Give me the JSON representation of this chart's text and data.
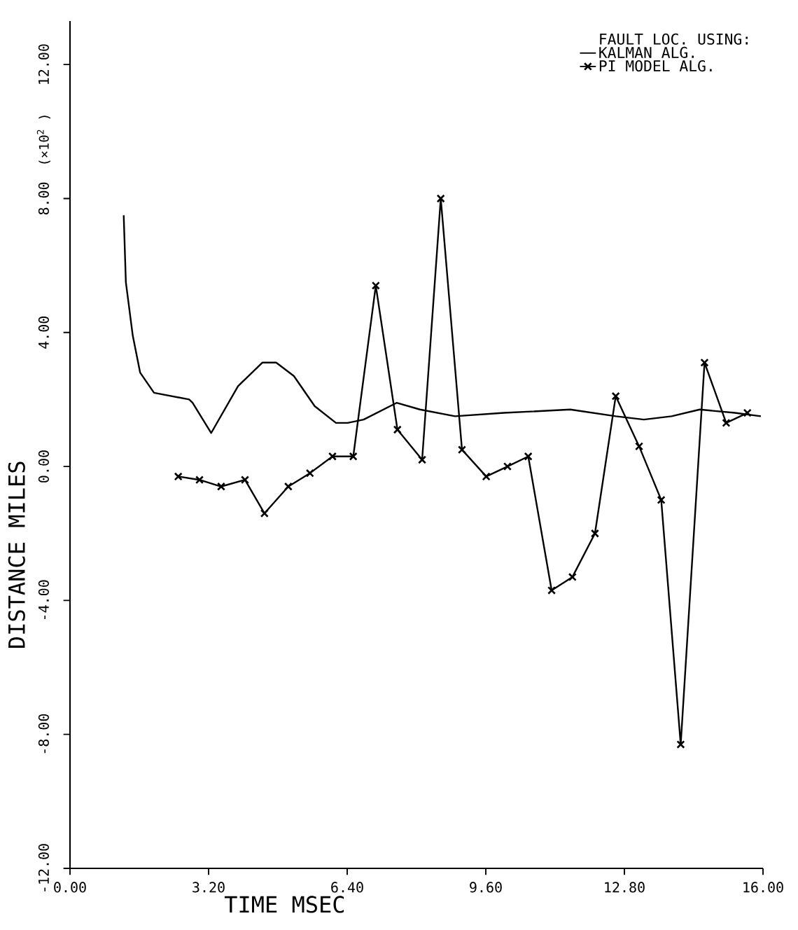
{
  "chart_data": {
    "type": "line",
    "xlabel": "TIME MSEC",
    "ylabel": "DISTANCE MILES",
    "legend_title": "FAULT LOC. USING:",
    "annotations": [
      "(×10$^{2}$ )"
    ],
    "xlim": [
      0,
      16
    ],
    "ylim": [
      -12,
      13.3
    ],
    "xticks": [
      {
        "value": 0,
        "label": "0.00"
      },
      {
        "value": 3.2,
        "label": "3.20"
      },
      {
        "value": 6.4,
        "label": "6.40"
      },
      {
        "value": 9.6,
        "label": "9.60"
      },
      {
        "value": 12.8,
        "label": "12.80"
      },
      {
        "value": 16,
        "label": "16.00"
      }
    ],
    "yticks": [
      {
        "value": -12,
        "label": "-12.00"
      },
      {
        "value": -8,
        "label": "-8.00"
      },
      {
        "value": -4,
        "label": "-4.00"
      },
      {
        "value": 0,
        "label": "0.00"
      },
      {
        "value": 4,
        "label": "4.00"
      },
      {
        "value": 8,
        "label": "8.00"
      },
      {
        "value": 12,
        "label": "12.00"
      }
    ],
    "legend": "top right",
    "line_style": "solid",
    "series": [
      {
        "name": "KALMAN ALG.",
        "color": "#000000",
        "marker": "none",
        "x": [
          1.24,
          1.29,
          1.45,
          1.62,
          1.94,
          2.75,
          2.83,
          3.26,
          3.88,
          4.44,
          4.76,
          5.17,
          5.65,
          6.14,
          6.41,
          6.78,
          7.54,
          8.08,
          8.89,
          10.02,
          11.55,
          12.6,
          13.25,
          13.89,
          14.54,
          15.35,
          15.95
        ],
        "values": [
          7.5,
          5.5,
          3.9,
          2.8,
          2.2,
          2.0,
          1.9,
          1.0,
          2.4,
          3.1,
          3.1,
          2.7,
          1.8,
          1.3,
          1.3,
          1.4,
          1.9,
          1.7,
          1.5,
          1.6,
          1.7,
          1.5,
          1.4,
          1.5,
          1.7,
          1.6,
          1.5
        ]
      },
      {
        "name": "PI MODEL ALG.",
        "color": "#000000",
        "marker": "cross",
        "x": [
          2.5,
          2.99,
          3.49,
          4.04,
          4.49,
          5.04,
          5.54,
          6.06,
          6.54,
          7.06,
          7.56,
          8.13,
          8.56,
          9.05,
          9.61,
          10.1,
          10.58,
          11.12,
          11.6,
          12.12,
          12.6,
          13.14,
          13.65,
          14.1,
          14.65,
          15.15,
          15.64
        ],
        "values": [
          -0.3,
          -0.4,
          -0.6,
          -0.4,
          -1.4,
          -0.6,
          -0.2,
          0.3,
          0.3,
          5.4,
          1.1,
          0.2,
          8.0,
          0.5,
          -0.3,
          0.0,
          0.3,
          -3.7,
          -3.3,
          -2.0,
          2.1,
          0.6,
          -1.0,
          -8.3,
          3.1,
          1.3,
          1.6
        ]
      }
    ]
  }
}
